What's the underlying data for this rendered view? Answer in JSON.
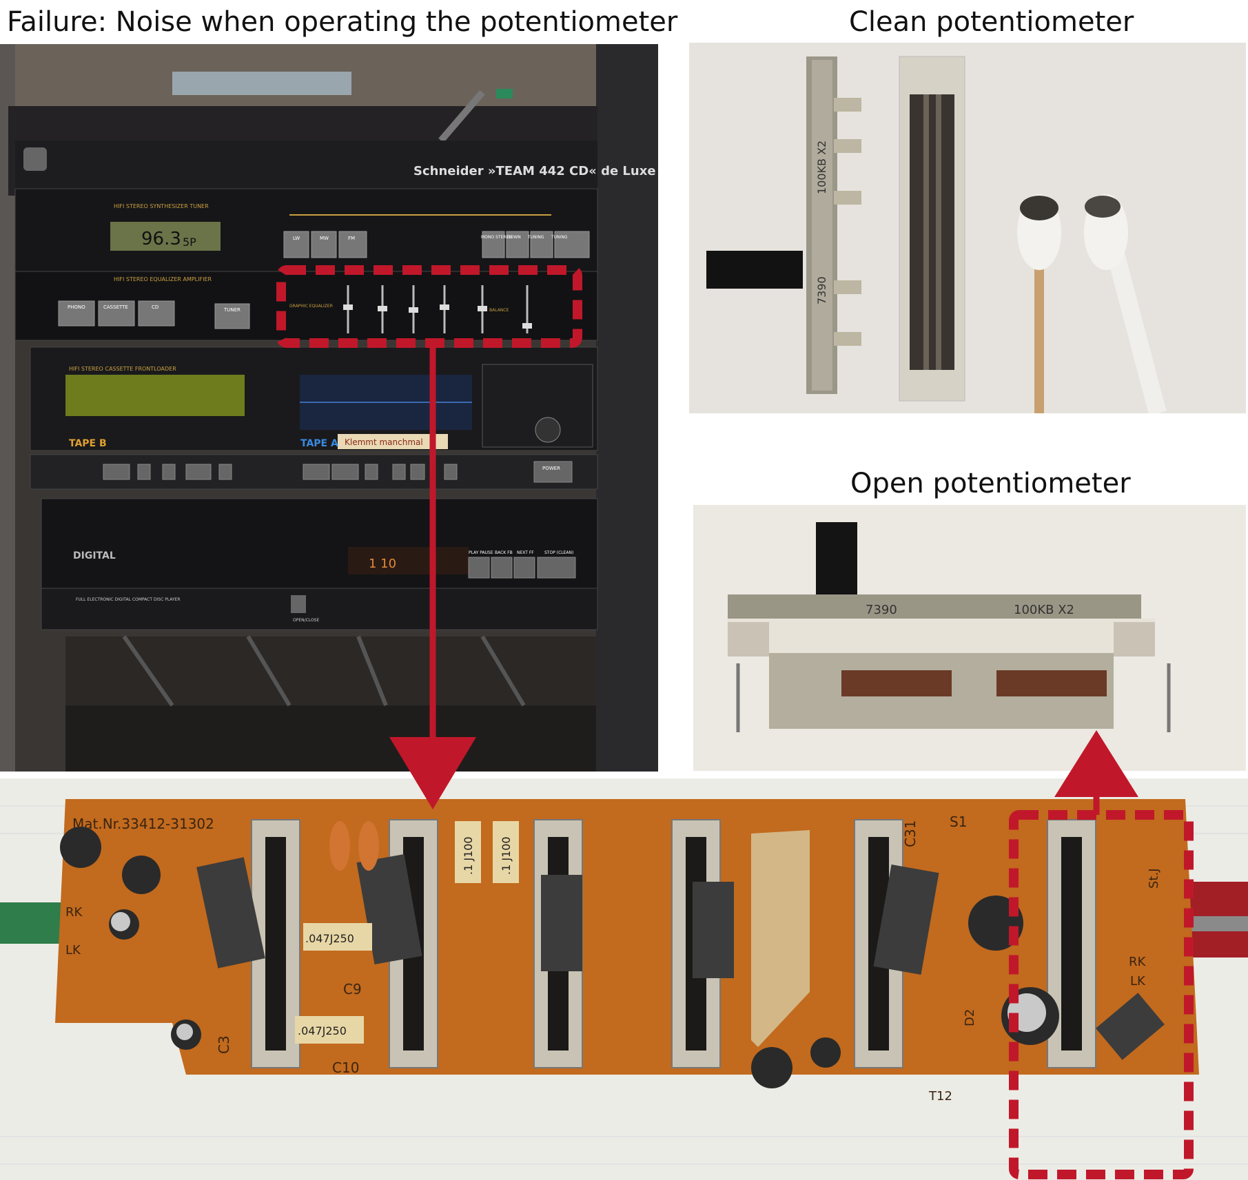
{
  "captions": {
    "failure": "Failure: Noise when operating the potentiometer",
    "clean": "Clean potentiometer",
    "open": "Open potentiometer"
  },
  "stereo": {
    "brand_title": "Schneider »TEAM 442 CD« de Luxe",
    "logo_text": "Schneider",
    "tuner_title": "HIFI STEREO SYNTHESIZER TUNER",
    "tuner_freq": "96.3",
    "tuner_mode": "5P",
    "equalizer_title": "HIFI STEREO EQUALIZER AMPLIFIER",
    "eq_label": "GRAPHIC EQUALIZER",
    "balance_label": "BALANCE",
    "amp_buttons": [
      "PHONO",
      "CASSETTE",
      "CD",
      "TUNER"
    ],
    "tuner_buttons": [
      "LW",
      "MW",
      "FM"
    ],
    "tuner_right_buttons": [
      "MONO STEREO",
      "DOWN",
      "TUNING",
      "TUNING"
    ],
    "cassette_title": "HIFI STEREO CASSETTE FRONTLOADER",
    "tape_b": "TAPE B",
    "tape_a": "TAPE A",
    "tape_label": "Klemmt manchmal",
    "cd_brand": "DIGITAL",
    "cd_title": "FULL ELECTRONIC DIGITAL COMPACT DISC PLAYER",
    "cd_display": "1    10",
    "cd_buttons": [
      "PLAY PAUSE",
      "BACK FB",
      "NEXT FF",
      "STOP (CLEAN)"
    ],
    "open_close": "OPEN/CLOSE",
    "power": "POWER"
  },
  "clean_photo": {
    "part_number": "7390",
    "rating": "100KB X2"
  },
  "open_photo": {
    "part_number": "7390",
    "rating": "100KB X2"
  },
  "pcb": {
    "board_number": "Mat.Nr.33412-31302",
    "labels": {
      "c9": "C9",
      "c10": "C10",
      "c31": "C31",
      "c3": "C3",
      "s1": "S1",
      "t12": "T12",
      "d2": "D2",
      "rk_left": "RK",
      "lk_left": "LK",
      "rk_right": "RK",
      "lk_right": "LK",
      "stj": "St.J"
    },
    "capacitor_values": [
      ".047J250",
      ".047J250",
      ".1 J100",
      ".1 J100"
    ]
  },
  "colors": {
    "accent_red": "#c0182a",
    "pcb": "#c26a1e",
    "stereo_dark": "#1a1a1c",
    "photo_bg": "#e8e4de"
  }
}
